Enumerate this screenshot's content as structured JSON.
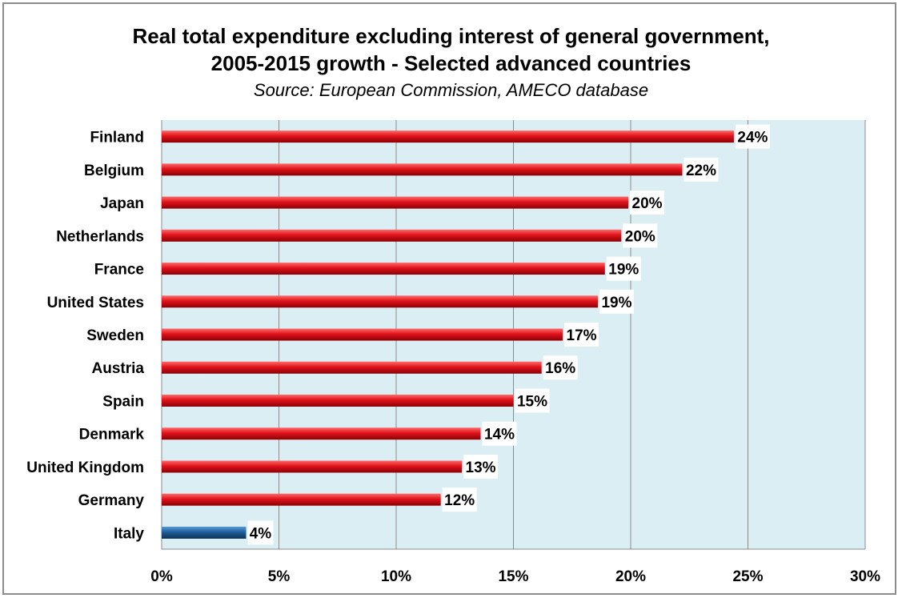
{
  "chart_data": {
    "type": "bar",
    "orientation": "horizontal",
    "title": "Real total expenditure excluding interest of general government,",
    "title_line2": "2005-2015 growth - Selected advanced countries",
    "subtitle": "Source: European Commission, AMECO database",
    "xlabel": "",
    "ylabel": "",
    "xlim": [
      0,
      30
    ],
    "xticks": [
      "0%",
      "5%",
      "10%",
      "15%",
      "20%",
      "25%",
      "30%"
    ],
    "grid": true,
    "categories": [
      "Finland",
      "Belgium",
      "Japan",
      "Netherlands",
      "France",
      "United States",
      "Sweden",
      "Austria",
      "Spain",
      "Denmark",
      "United Kingdom",
      "Germany",
      "Italy"
    ],
    "values": [
      24.4,
      22.2,
      19.9,
      19.6,
      18.9,
      18.6,
      17.1,
      16.2,
      15.0,
      13.6,
      12.8,
      11.9,
      3.6
    ],
    "data_labels": [
      "24%",
      "22%",
      "20%",
      "20%",
      "19%",
      "19%",
      "17%",
      "16%",
      "15%",
      "14%",
      "13%",
      "12%",
      "4%"
    ],
    "colors": {
      "default_bar": "#e0121a",
      "highlight_bar": "#1f5f9a",
      "plot_background": "#dbeef4",
      "gridline": "#8c8c8c"
    },
    "highlight_category": "Italy"
  }
}
